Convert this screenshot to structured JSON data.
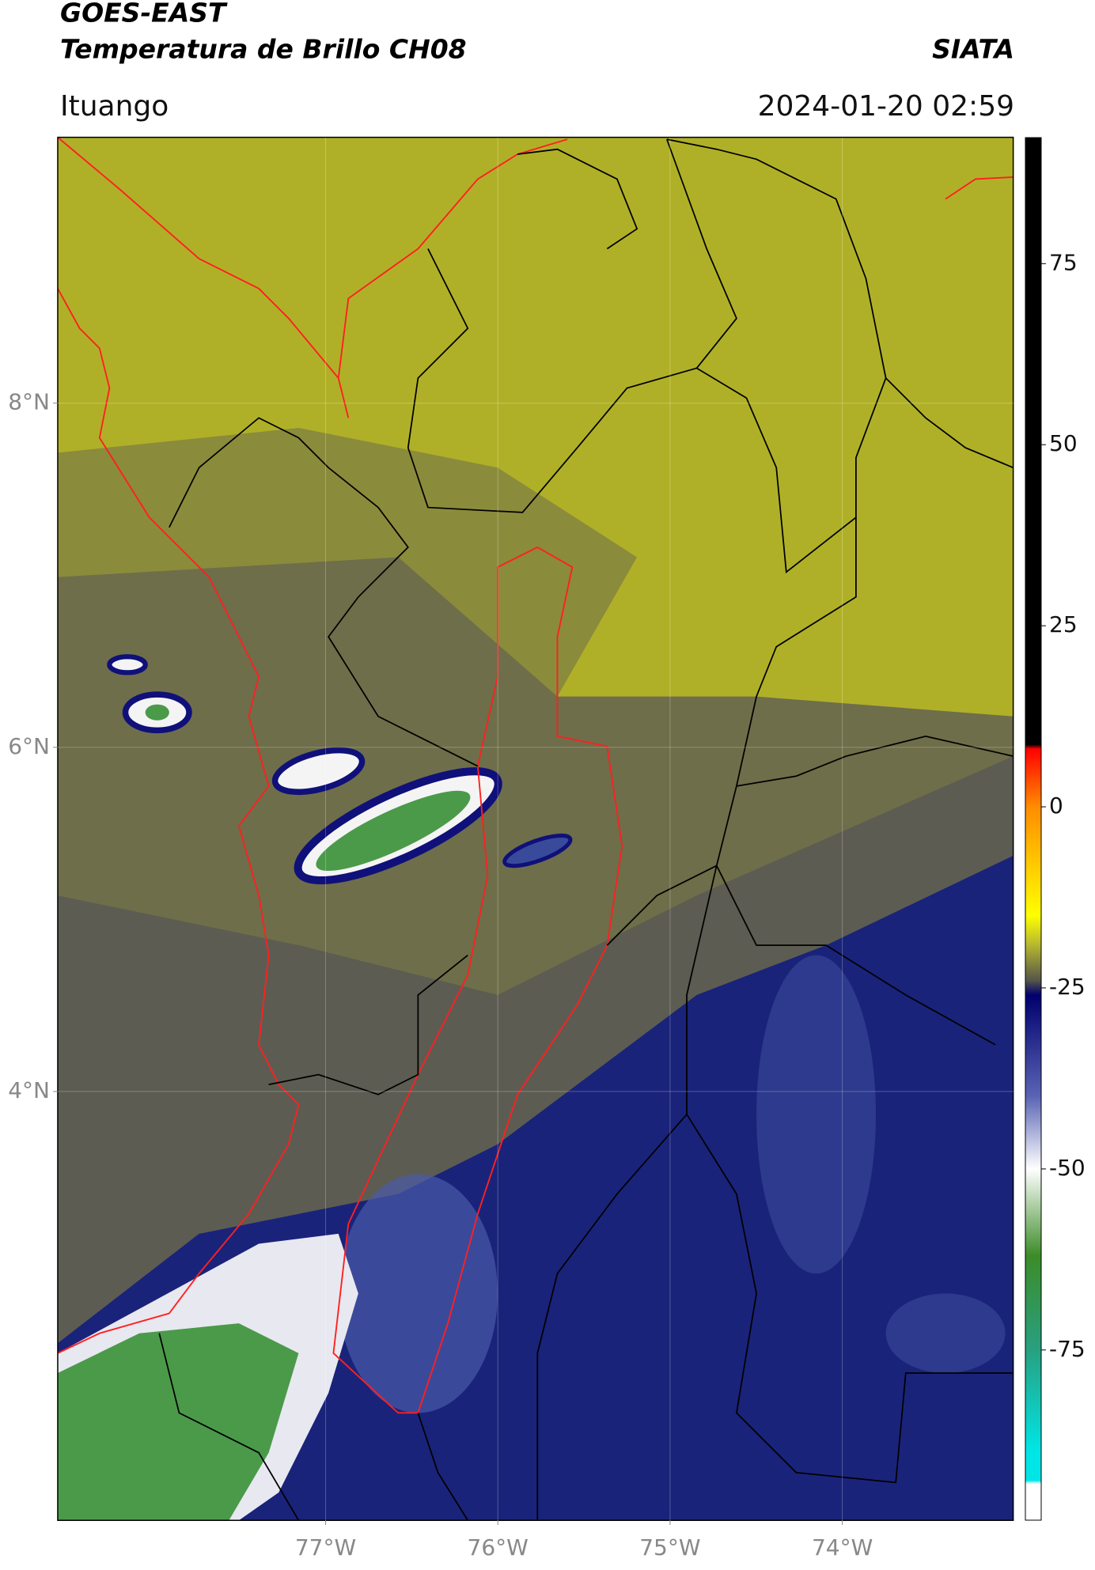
{
  "chart_data": {
    "type": "map",
    "title": "GOES-EAST",
    "subtitle": "Temperatura de Brillo CH08",
    "source": "SIATA",
    "location": "Ituango",
    "datetime": "2024-01-20 02:59",
    "xlim": [
      -78.555,
      -73.006
    ],
    "ylim": [
      1.509,
      9.543
    ],
    "xticks": [
      {
        "value": -77,
        "label": "77°W"
      },
      {
        "value": -76,
        "label": "76°W"
      },
      {
        "value": -75,
        "label": "75°W"
      },
      {
        "value": -74,
        "label": "74°W"
      }
    ],
    "yticks": [
      {
        "value": 8,
        "label": "8°N"
      },
      {
        "value": 6,
        "label": "6°N"
      },
      {
        "value": 4,
        "label": "4°N"
      }
    ],
    "grid": true,
    "colorbar": {
      "clim": [
        -98.5,
        92.4
      ],
      "ticks": [
        75,
        50,
        25,
        0,
        -25,
        -50,
        -75
      ],
      "stops": [
        {
          "value": 92.4,
          "color": "#000000"
        },
        {
          "value": 8.6,
          "color": "#000000"
        },
        {
          "value": 8,
          "color": "#ff0000"
        },
        {
          "value": 0,
          "color": "#ff8c00"
        },
        {
          "value": -15,
          "color": "#ffff00"
        },
        {
          "value": -19,
          "color": "#b8b830"
        },
        {
          "value": -24,
          "color": "#55554a"
        },
        {
          "value": -26,
          "color": "#00006e"
        },
        {
          "value": -40,
          "color": "#5a64b4"
        },
        {
          "value": -50,
          "color": "#ffffff"
        },
        {
          "value": -62,
          "color": "#3c8c28"
        },
        {
          "value": -75,
          "color": "#28a080"
        },
        {
          "value": -89,
          "color": "#00e6e6"
        },
        {
          "value": -93,
          "color": "#00e6e6"
        },
        {
          "value": -93.5,
          "color": "#ffffff"
        },
        {
          "value": -98.5,
          "color": "#ffffff"
        }
      ]
    }
  }
}
